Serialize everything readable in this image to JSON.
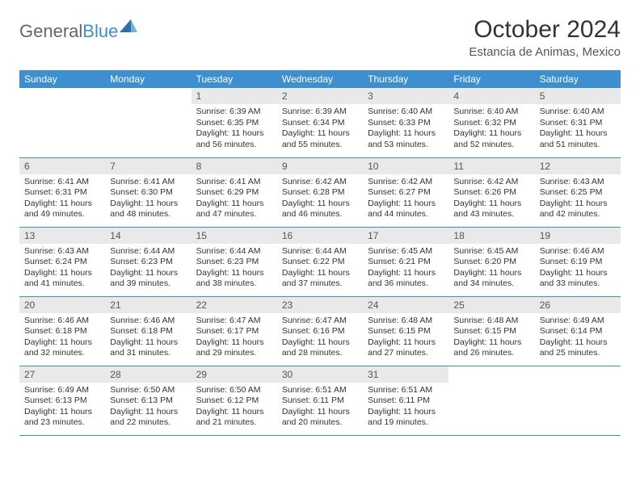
{
  "logo": {
    "part1": "General",
    "part2": "Blue"
  },
  "title": "October 2024",
  "subtitle": "Estancia de Animas, Mexico",
  "colors": {
    "header_bg": "#3d8fcf",
    "header_text": "#ffffff",
    "daynum_bg": "#e9e9e9",
    "row_border": "#3d8fcf",
    "body_text": "#333333",
    "page_bg": "#ffffff"
  },
  "weekdays": [
    "Sunday",
    "Monday",
    "Tuesday",
    "Wednesday",
    "Thursday",
    "Friday",
    "Saturday"
  ],
  "weeks": [
    [
      {
        "n": "",
        "sr": "",
        "ss": "",
        "dl": ""
      },
      {
        "n": "",
        "sr": "",
        "ss": "",
        "dl": ""
      },
      {
        "n": "1",
        "sr": "Sunrise: 6:39 AM",
        "ss": "Sunset: 6:35 PM",
        "dl": "Daylight: 11 hours and 56 minutes."
      },
      {
        "n": "2",
        "sr": "Sunrise: 6:39 AM",
        "ss": "Sunset: 6:34 PM",
        "dl": "Daylight: 11 hours and 55 minutes."
      },
      {
        "n": "3",
        "sr": "Sunrise: 6:40 AM",
        "ss": "Sunset: 6:33 PM",
        "dl": "Daylight: 11 hours and 53 minutes."
      },
      {
        "n": "4",
        "sr": "Sunrise: 6:40 AM",
        "ss": "Sunset: 6:32 PM",
        "dl": "Daylight: 11 hours and 52 minutes."
      },
      {
        "n": "5",
        "sr": "Sunrise: 6:40 AM",
        "ss": "Sunset: 6:31 PM",
        "dl": "Daylight: 11 hours and 51 minutes."
      }
    ],
    [
      {
        "n": "6",
        "sr": "Sunrise: 6:41 AM",
        "ss": "Sunset: 6:31 PM",
        "dl": "Daylight: 11 hours and 49 minutes."
      },
      {
        "n": "7",
        "sr": "Sunrise: 6:41 AM",
        "ss": "Sunset: 6:30 PM",
        "dl": "Daylight: 11 hours and 48 minutes."
      },
      {
        "n": "8",
        "sr": "Sunrise: 6:41 AM",
        "ss": "Sunset: 6:29 PM",
        "dl": "Daylight: 11 hours and 47 minutes."
      },
      {
        "n": "9",
        "sr": "Sunrise: 6:42 AM",
        "ss": "Sunset: 6:28 PM",
        "dl": "Daylight: 11 hours and 46 minutes."
      },
      {
        "n": "10",
        "sr": "Sunrise: 6:42 AM",
        "ss": "Sunset: 6:27 PM",
        "dl": "Daylight: 11 hours and 44 minutes."
      },
      {
        "n": "11",
        "sr": "Sunrise: 6:42 AM",
        "ss": "Sunset: 6:26 PM",
        "dl": "Daylight: 11 hours and 43 minutes."
      },
      {
        "n": "12",
        "sr": "Sunrise: 6:43 AM",
        "ss": "Sunset: 6:25 PM",
        "dl": "Daylight: 11 hours and 42 minutes."
      }
    ],
    [
      {
        "n": "13",
        "sr": "Sunrise: 6:43 AM",
        "ss": "Sunset: 6:24 PM",
        "dl": "Daylight: 11 hours and 41 minutes."
      },
      {
        "n": "14",
        "sr": "Sunrise: 6:44 AM",
        "ss": "Sunset: 6:23 PM",
        "dl": "Daylight: 11 hours and 39 minutes."
      },
      {
        "n": "15",
        "sr": "Sunrise: 6:44 AM",
        "ss": "Sunset: 6:23 PM",
        "dl": "Daylight: 11 hours and 38 minutes."
      },
      {
        "n": "16",
        "sr": "Sunrise: 6:44 AM",
        "ss": "Sunset: 6:22 PM",
        "dl": "Daylight: 11 hours and 37 minutes."
      },
      {
        "n": "17",
        "sr": "Sunrise: 6:45 AM",
        "ss": "Sunset: 6:21 PM",
        "dl": "Daylight: 11 hours and 36 minutes."
      },
      {
        "n": "18",
        "sr": "Sunrise: 6:45 AM",
        "ss": "Sunset: 6:20 PM",
        "dl": "Daylight: 11 hours and 34 minutes."
      },
      {
        "n": "19",
        "sr": "Sunrise: 6:46 AM",
        "ss": "Sunset: 6:19 PM",
        "dl": "Daylight: 11 hours and 33 minutes."
      }
    ],
    [
      {
        "n": "20",
        "sr": "Sunrise: 6:46 AM",
        "ss": "Sunset: 6:18 PM",
        "dl": "Daylight: 11 hours and 32 minutes."
      },
      {
        "n": "21",
        "sr": "Sunrise: 6:46 AM",
        "ss": "Sunset: 6:18 PM",
        "dl": "Daylight: 11 hours and 31 minutes."
      },
      {
        "n": "22",
        "sr": "Sunrise: 6:47 AM",
        "ss": "Sunset: 6:17 PM",
        "dl": "Daylight: 11 hours and 29 minutes."
      },
      {
        "n": "23",
        "sr": "Sunrise: 6:47 AM",
        "ss": "Sunset: 6:16 PM",
        "dl": "Daylight: 11 hours and 28 minutes."
      },
      {
        "n": "24",
        "sr": "Sunrise: 6:48 AM",
        "ss": "Sunset: 6:15 PM",
        "dl": "Daylight: 11 hours and 27 minutes."
      },
      {
        "n": "25",
        "sr": "Sunrise: 6:48 AM",
        "ss": "Sunset: 6:15 PM",
        "dl": "Daylight: 11 hours and 26 minutes."
      },
      {
        "n": "26",
        "sr": "Sunrise: 6:49 AM",
        "ss": "Sunset: 6:14 PM",
        "dl": "Daylight: 11 hours and 25 minutes."
      }
    ],
    [
      {
        "n": "27",
        "sr": "Sunrise: 6:49 AM",
        "ss": "Sunset: 6:13 PM",
        "dl": "Daylight: 11 hours and 23 minutes."
      },
      {
        "n": "28",
        "sr": "Sunrise: 6:50 AM",
        "ss": "Sunset: 6:13 PM",
        "dl": "Daylight: 11 hours and 22 minutes."
      },
      {
        "n": "29",
        "sr": "Sunrise: 6:50 AM",
        "ss": "Sunset: 6:12 PM",
        "dl": "Daylight: 11 hours and 21 minutes."
      },
      {
        "n": "30",
        "sr": "Sunrise: 6:51 AM",
        "ss": "Sunset: 6:11 PM",
        "dl": "Daylight: 11 hours and 20 minutes."
      },
      {
        "n": "31",
        "sr": "Sunrise: 6:51 AM",
        "ss": "Sunset: 6:11 PM",
        "dl": "Daylight: 11 hours and 19 minutes."
      },
      {
        "n": "",
        "sr": "",
        "ss": "",
        "dl": ""
      },
      {
        "n": "",
        "sr": "",
        "ss": "",
        "dl": ""
      }
    ]
  ]
}
